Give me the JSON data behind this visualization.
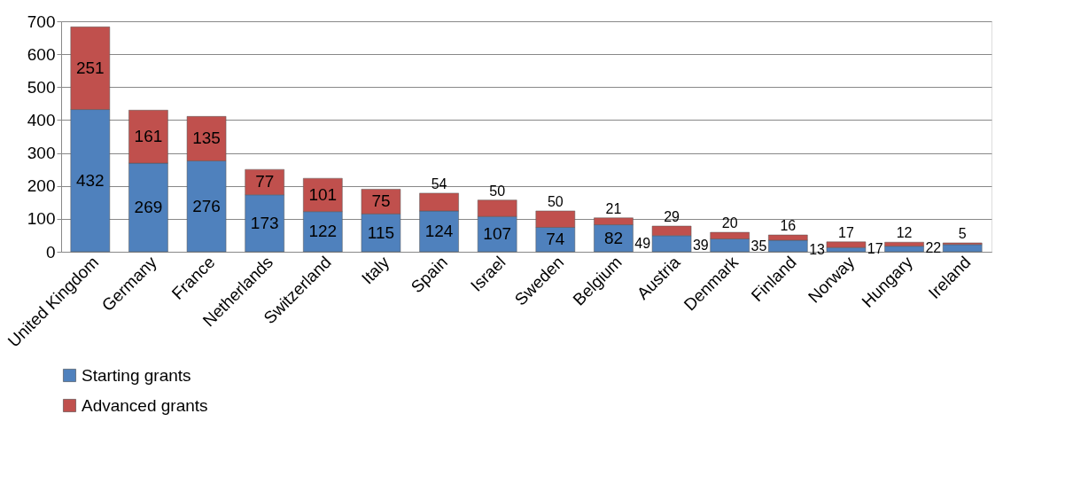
{
  "chart_data": {
    "type": "bar",
    "stacked": true,
    "categories": [
      "United Kingdom",
      "Germany",
      "France",
      "Netherlands",
      "Switzerland",
      "Italy",
      "Spain",
      "Israel",
      "Sweden",
      "Belgium",
      "Austria",
      "Denmark",
      "Finland",
      "Norway",
      "Hungary",
      "Ireland"
    ],
    "series": [
      {
        "name": "Starting grants",
        "color": "#4f81bd",
        "values": [
          432,
          269,
          276,
          173,
          122,
          115,
          124,
          107,
          74,
          82,
          49,
          39,
          35,
          13,
          17,
          22
        ]
      },
      {
        "name": "Advanced grants",
        "color": "#c0504d",
        "values": [
          251,
          161,
          135,
          77,
          101,
          75,
          54,
          50,
          50,
          21,
          29,
          20,
          16,
          17,
          12,
          5
        ]
      }
    ],
    "ylim": [
      0,
      700
    ],
    "yticks": [
      0,
      100,
      200,
      300,
      400,
      500,
      600,
      700
    ],
    "grid": "y",
    "legend": "bottom",
    "data_labels": true
  }
}
